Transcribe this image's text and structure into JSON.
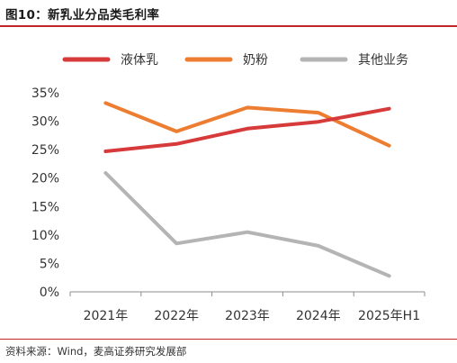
{
  "title": "图10：新乳业分品类毛利率",
  "source": "资料来源：Wind，麦高证券研究发展部",
  "chart_data": {
    "type": "line",
    "categories": [
      "2021年",
      "2022年",
      "2023年",
      "2024年",
      "2025年H1"
    ],
    "ylim": [
      0,
      35
    ],
    "yticks": [
      0,
      5,
      10,
      15,
      20,
      25,
      30,
      35
    ],
    "ytick_labels": [
      "0%",
      "5%",
      "10%",
      "15%",
      "20%",
      "25%",
      "30%",
      "35%"
    ],
    "grid": false,
    "legend_position": "top",
    "series": [
      {
        "name": "液体乳",
        "color": "#d63a3a",
        "values": [
          24.7,
          26.0,
          28.7,
          29.9,
          32.2
        ]
      },
      {
        "name": "奶粉",
        "color": "#ed7d31",
        "values": [
          33.2,
          28.2,
          32.4,
          31.5,
          25.7
        ]
      },
      {
        "name": "其他业务",
        "color": "#b4b4b4",
        "values": [
          20.9,
          8.5,
          10.5,
          8.1,
          2.8
        ]
      }
    ]
  }
}
